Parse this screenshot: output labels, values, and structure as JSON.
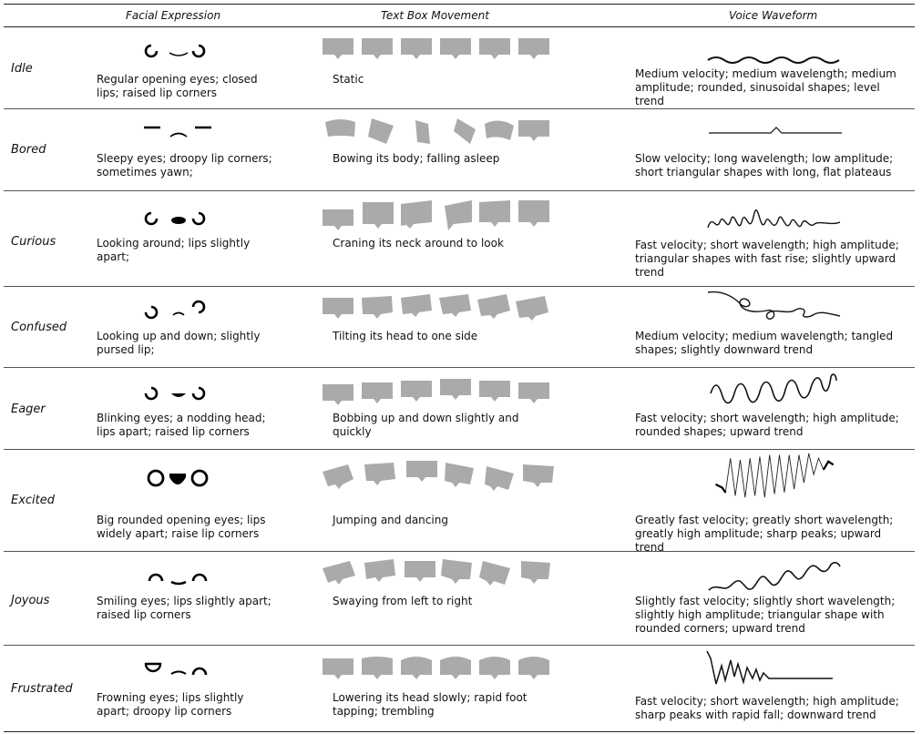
{
  "headers": {
    "facial": "Facial Expression",
    "movement": "Text Box Movement",
    "voice": "Voice Waveform"
  },
  "rows": [
    {
      "emotion": "Idle",
      "facial": "Regular opening eyes; closed lips; raised lip corners",
      "movement": "Static",
      "voice": "Medium velocity; medium wavelength; medium amplitude;  rounded, sinusoidal shapes; level trend"
    },
    {
      "emotion": "Bored",
      "facial": "Sleepy eyes; droopy lip corners; sometimes yawn;",
      "movement": "Bowing its body; falling asleep",
      "voice": "Slow velocity; long wavelength; low amplitude; short triangular shapes with long, flat plateaus"
    },
    {
      "emotion": "Curious",
      "facial": "Looking around; lips slightly apart;",
      "movement": "Craning its neck around to look",
      "voice": "Fast velocity; short wavelength; high amplitude; triangular shapes with fast rise; slightly upward trend"
    },
    {
      "emotion": "Confused",
      "facial": "Looking up and down; slightly pursed lip;",
      "movement": "Tilting its head to one side",
      "voice": "Medium velocity; medium wavelength;  tangled shapes; slightly downward trend"
    },
    {
      "emotion": "Eager",
      "facial": "Blinking eyes; a nodding head; lips apart; raised lip corners",
      "movement": "Bobbing up and down slightly and quickly",
      "voice": "Fast velocity; short wavelength; high amplitude; rounded shapes; upward trend"
    },
    {
      "emotion": "Excited",
      "facial": "Big rounded opening eyes; lips widely apart; raise lip corners",
      "movement": "Jumping and dancing",
      "voice": "Greatly fast velocity; greatly short wavelength; greatly high amplitude; sharp peaks; upward trend"
    },
    {
      "emotion": "Joyous",
      "facial": "Smiling eyes; lips slightly apart; raised lip corners",
      "movement": "Swaying from left to right",
      "voice": "Slightly fast velocity; slightly short wavelength; slightly high amplitude; triangular shape with rounded corners; upward trend"
    },
    {
      "emotion": "Frustrated",
      "facial": "Frowning eyes; lips slightly apart; droopy lip corners",
      "movement": "Lowering its head slowly; rapid foot tapping; trembling",
      "voice": "Fast velocity; short wavelength; high amplitude; sharp peaks with rapid fall; downward trend"
    }
  ]
}
